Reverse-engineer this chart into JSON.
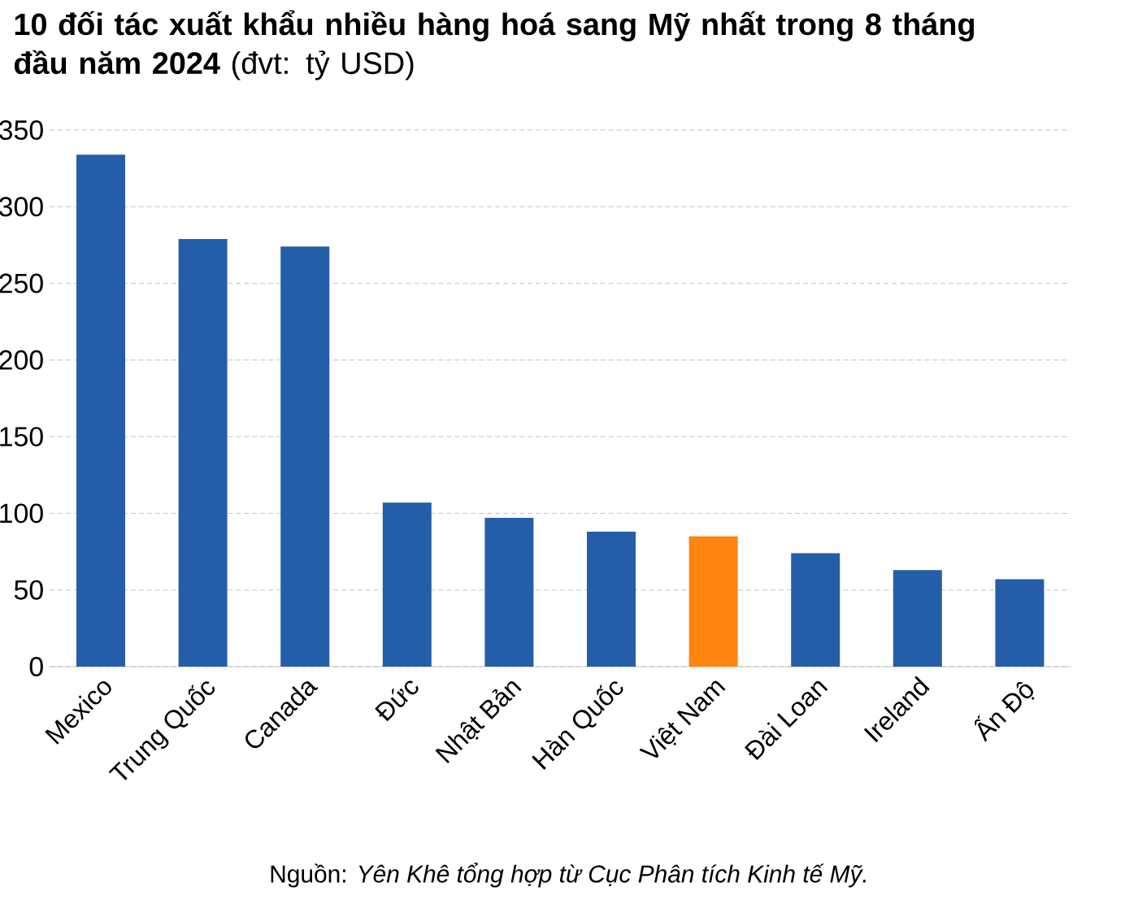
{
  "chart_data": {
    "type": "bar",
    "title": "**10 đối tác xuất khẩu nhiều hàng hoá sang Mỹ nhất trong 8 tháng đầu năm 2024** (đvt: tỷ USD)",
    "categories": [
      "Mexico",
      "Trung Quốc",
      "Canada",
      "Đức",
      "Nhật Bản",
      "Hàn Quốc",
      "Việt Nam",
      "Đài Loan",
      "Ireland",
      "Ấn Độ"
    ],
    "values": [
      334,
      279,
      274,
      107,
      97,
      88,
      85,
      74,
      63,
      57
    ],
    "colors": [
      "#255ea8",
      "#255ea8",
      "#255ea8",
      "#255ea8",
      "#255ea8",
      "#255ea8",
      "#ff8410",
      "#255ea8",
      "#255ea8",
      "#255ea8"
    ],
    "ylim": [
      0,
      350
    ],
    "yticks": [
      0,
      50,
      100,
      150,
      200,
      250,
      300,
      350
    ],
    "grid": "y",
    "annotations": [
      "Nguồn: *Yên Khê tổng hợp từ Cục Phân tích Kinh tế Mỹ.*"
    ]
  }
}
